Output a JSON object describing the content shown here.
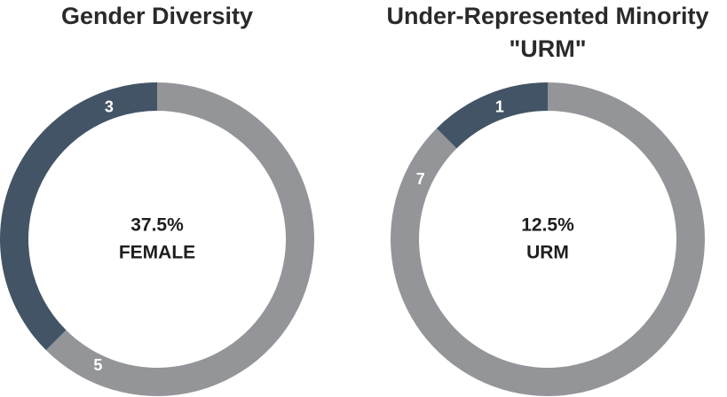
{
  "chart_data": [
    {
      "type": "donut",
      "title": [
        "Gender Diversity"
      ],
      "values": [
        5,
        3
      ],
      "colors": [
        "#939598",
        "#435466"
      ],
      "center_text": [
        "37.5%",
        "FEMALE"
      ]
    },
    {
      "type": "donut",
      "title": [
        "Under-Represented Minority",
        "\"URM\""
      ],
      "values": [
        7,
        1
      ],
      "colors": [
        "#939598",
        "#435466"
      ],
      "center_text": [
        "12.5%",
        "URM"
      ]
    }
  ]
}
